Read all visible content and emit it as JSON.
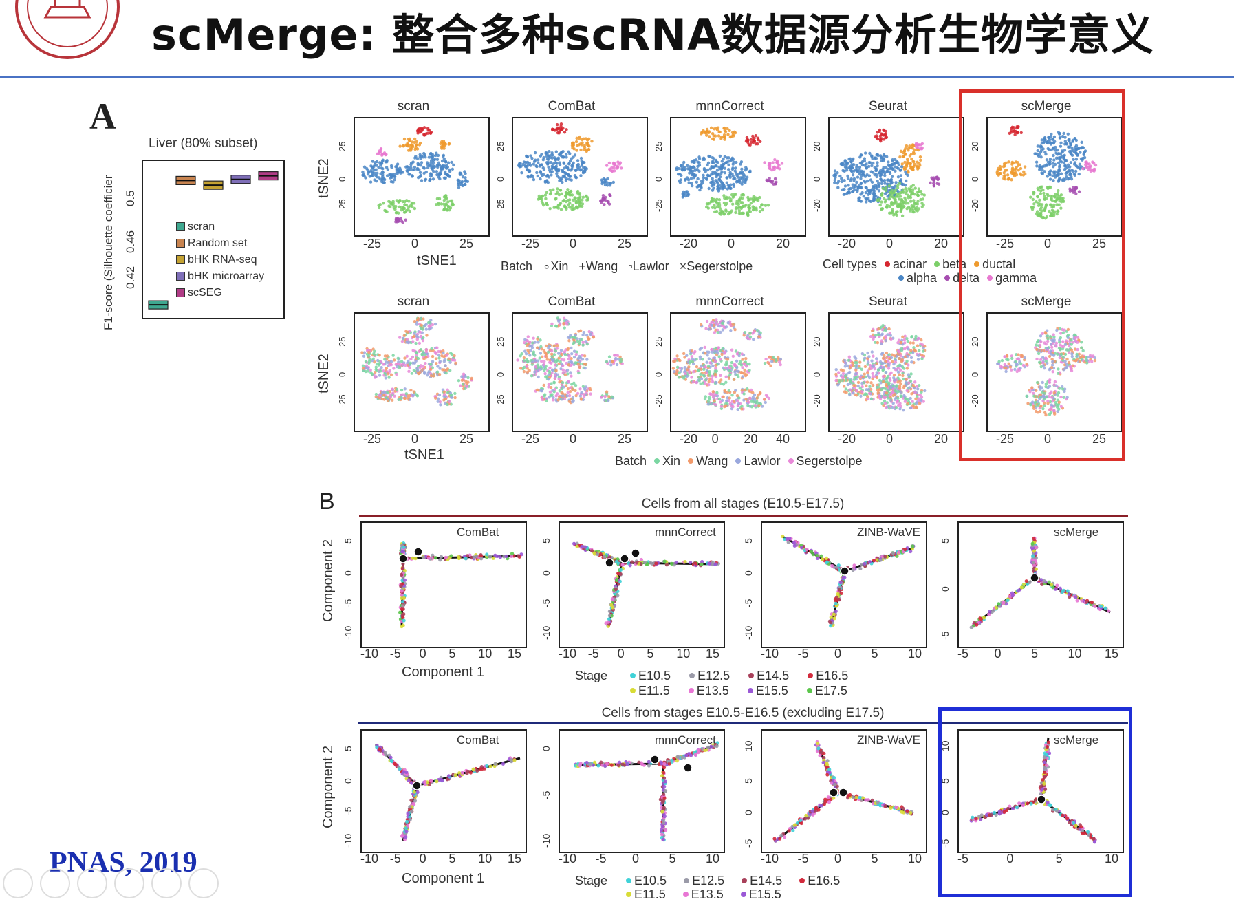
{
  "slide": {
    "title": "scMerge: 整合多种scRNA数据源分析生物学意义",
    "citation": "PNAS, 2019",
    "panel_a_letter": "A",
    "panel_b_letter": "B"
  },
  "colors": {
    "rule": "#4a72c4",
    "highlight_red": "#d9302a",
    "highlight_blue": "#1f2ed6",
    "citation": "#1a2fb0",
    "celltypes": {
      "acinar": "#d6262f",
      "alpha": "#4a86c5",
      "beta": "#7ccf68",
      "delta": "#a64db0",
      "ductal": "#ee9a2e",
      "gamma": "#e879d0"
    },
    "batches": {
      "Xin": "#7bd6a2",
      "Wang": "#f29a6b",
      "Lawlor": "#9aa8dd",
      "Segerstolpe": "#e889d8"
    },
    "stages": {
      "E10.5": "#40d2d8",
      "E11.5": "#d8dc36",
      "E12.5": "#9a9aa8",
      "E13.5": "#e876d4",
      "E14.5": "#a8405a",
      "E15.5": "#9a58d6",
      "E16.5": "#d22a3c",
      "E17.5": "#5cc64c"
    }
  },
  "chart_data": [
    {
      "type": "box",
      "title": "Liver (80% subset)",
      "ylabel": "F1-score (Silhouette coefficier",
      "yticks": [
        "0.42",
        "0.46",
        "0.5"
      ],
      "ylim": [
        0.395,
        0.53
      ],
      "series": [
        {
          "name": "scran",
          "values": [
            0.405
          ],
          "color": "#3fa890"
        },
        {
          "name": "Random set",
          "values": [
            0.512
          ],
          "color": "#c88450"
        },
        {
          "name": "bHK RNA-seq",
          "values": [
            0.508
          ],
          "color": "#c4a232"
        },
        {
          "name": "bHK microarray",
          "values": [
            0.513
          ],
          "color": "#7f6fb8"
        },
        {
          "name": "scSEG",
          "values": [
            0.516
          ],
          "color": "#b03c86"
        }
      ]
    },
    {
      "type": "scatter",
      "panel": "A-top",
      "methods": [
        "scran",
        "ComBat",
        "mnnCorrect",
        "Seurat",
        "scMerge"
      ],
      "xlabel": "tSNE1",
      "ylabel": "tSNE2",
      "xticks": [
        [
          "-25",
          "0",
          "25"
        ],
        [
          "-25",
          "0",
          "25"
        ],
        [
          "-20",
          "0",
          "20"
        ],
        [
          "-20",
          "0",
          "20"
        ],
        [
          "-25",
          "0",
          "25"
        ]
      ],
      "yticks": [
        [
          "25",
          "0",
          "-25"
        ],
        [
          "25",
          "0",
          "-25"
        ],
        [
          "25",
          "0",
          "-25"
        ],
        [
          "20",
          "0",
          "-20"
        ],
        [
          "20",
          "0",
          "-20"
        ]
      ],
      "legend_batch_title": "Batch",
      "legend_batch": [
        {
          "symbol": "∘",
          "name": "Xin"
        },
        {
          "symbol": "+",
          "name": "Wang"
        },
        {
          "symbol": "▫",
          "name": "Lawlor"
        },
        {
          "symbol": "×",
          "name": "Segerstolpe"
        }
      ],
      "legend_celltype_title": "Cell types",
      "legend_celltype_row1": [
        "acinar",
        "beta",
        "ductal"
      ],
      "legend_celltype_row2": [
        "alpha",
        "delta",
        "gamma"
      ]
    },
    {
      "type": "scatter",
      "panel": "A-bottom",
      "methods": [
        "scran",
        "ComBat",
        "mnnCorrect",
        "Seurat",
        "scMerge"
      ],
      "xlabel": "tSNE1",
      "ylabel": "tSNE2",
      "xticks": [
        [
          "-25",
          "0",
          "25"
        ],
        [
          "-25",
          "0",
          "25"
        ],
        [
          "-20",
          "0",
          "20",
          "40"
        ],
        [
          "-20",
          "0",
          "20"
        ],
        [
          "-25",
          "0",
          "25"
        ]
      ],
      "yticks": [
        [
          "25",
          "0",
          "-25"
        ],
        [
          "25",
          "0",
          "-25"
        ],
        [
          "25",
          "0",
          "-25"
        ],
        [
          "20",
          "0",
          "-20"
        ],
        [
          "20",
          "0",
          "-20"
        ]
      ],
      "legend_title": "Batch",
      "legend": [
        "Xin",
        "Wang",
        "Lawlor",
        "Segerstolpe"
      ]
    },
    {
      "type": "scatter",
      "panel": "B-top",
      "title": "Cells from all stages (E10.5-E17.5)",
      "methods": [
        "ComBat",
        "mnnCorrect",
        "ZINB-WaVE",
        "scMerge"
      ],
      "xlabel": "Component 1",
      "ylabel": "Component 2",
      "xticks": [
        [
          "-10",
          "-5",
          "0",
          "5",
          "10",
          "15"
        ],
        [
          "-10",
          "-5",
          "0",
          "5",
          "10",
          "15"
        ],
        [
          "-10",
          "-5",
          "0",
          "5",
          "10"
        ],
        [
          "-5",
          "0",
          "5",
          "10",
          "15"
        ]
      ],
      "yticks": [
        [
          "5",
          "0",
          "-5",
          "-10"
        ],
        [
          "5",
          "0",
          "-5",
          "-10"
        ],
        [
          "5",
          "0",
          "-5",
          "-10"
        ],
        [
          "5",
          "0",
          "-5"
        ]
      ],
      "legend_title": "Stage",
      "legend_row1": [
        "E10.5",
        "E12.5",
        "E14.5",
        "E16.5"
      ],
      "legend_row2": [
        "E11.5",
        "E13.5",
        "E15.5",
        "E17.5"
      ]
    },
    {
      "type": "scatter",
      "panel": "B-bottom",
      "title": "Cells from stages E10.5-E16.5 (excluding E17.5)",
      "methods": [
        "ComBat",
        "mnnCorrect",
        "ZINB-WaVE",
        "scMerge"
      ],
      "xlabel": "Component 1",
      "ylabel": "Component 2",
      "xticks": [
        [
          "-10",
          "-5",
          "0",
          "5",
          "10",
          "15"
        ],
        [
          "-10",
          "-5",
          "0",
          "5",
          "10"
        ],
        [
          "-10",
          "-5",
          "0",
          "5",
          "10"
        ],
        [
          "-5",
          "0",
          "5",
          "10"
        ]
      ],
      "yticks": [
        [
          "5",
          "0",
          "-5",
          "-10"
        ],
        [
          "0",
          "-5",
          "-10"
        ],
        [
          "10",
          "5",
          "0",
          "-5"
        ],
        [
          "10",
          "5",
          "0",
          "-5"
        ]
      ],
      "legend_title": "Stage",
      "legend_row1": [
        "E10.5",
        "E12.5",
        "E14.5",
        "E16.5"
      ],
      "legend_row2": [
        "E11.5",
        "E13.5",
        "E15.5"
      ]
    }
  ]
}
